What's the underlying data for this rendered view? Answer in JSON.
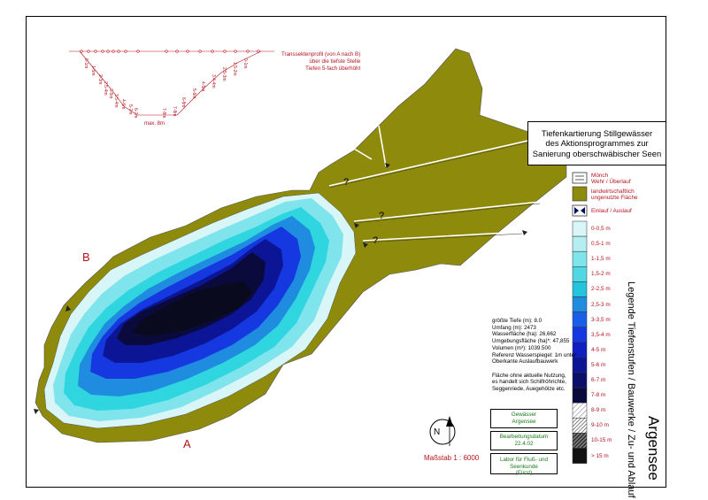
{
  "map": {
    "lake_name": "Argensee",
    "point_a": "A",
    "point_b": "B",
    "question_marks": [
      "?",
      "?",
      "?"
    ],
    "north_label": "N",
    "scale": "Maßstab 1 : 6000",
    "colors": {
      "land": "#8d8a0c",
      "shore": "#d8f6f8",
      "outer_depth": "#2fd6e0",
      "deepest": "#0a0a1e"
    }
  },
  "profile": {
    "caption_lines": [
      "Transsektenprofil (von A nach B)",
      "über die tiefste Stelle",
      "Tiefen 5-fach überhöht"
    ],
    "max_label": "max. 8m",
    "depth_labels": [
      "0-1m",
      "1-5m",
      "2-3m",
      "2.5-4m",
      "3-5m",
      "3.5-4m",
      "4-6m",
      "5-7m",
      "6-7m",
      "7-8m",
      "7-8m",
      "6-8m",
      "5-6m",
      "4-5m",
      "3.4-4m",
      "2.5-3m",
      "1.5-2m",
      "0-1m"
    ]
  },
  "title": {
    "lines": [
      "Tiefenkartierung Stillgewässer",
      "des Aktionsprogrammes zur",
      "Sanierung oberschwäbischer Seen"
    ]
  },
  "legend": {
    "vertical_title": "Argensee",
    "vertical_subtitle": "Legende Tiefenstufen / Bauwerke / Zu- und Ablauf",
    "symbols": [
      {
        "label": "Mönch",
        "label2": "Wehr / Überlauf",
        "icon": "weir-icon"
      },
      {
        "label": "landwirtschaftlich",
        "label2": "ungenutzte Fläche",
        "icon": "land-swatch"
      },
      {
        "label": "Einlauf / Auslauf",
        "label2": "",
        "icon": "inflow-outflow-icon"
      }
    ],
    "depth_classes": [
      {
        "label": "0-0,5 m",
        "color": "#d8f6f8"
      },
      {
        "label": "0,5-1 m",
        "color": "#b4eef2"
      },
      {
        "label": "1-1,5 m",
        "color": "#7fe4ec"
      },
      {
        "label": "1,5-2 m",
        "color": "#4fd7e4"
      },
      {
        "label": "2-2,5 m",
        "color": "#23c4dc"
      },
      {
        "label": "2,5-3 m",
        "color": "#1f8ce0"
      },
      {
        "label": "3-3,5 m",
        "color": "#1b5ee8"
      },
      {
        "label": "3,5-4 m",
        "color": "#1538e0"
      },
      {
        "label": "4-5 m",
        "color": "#1020c0"
      },
      {
        "label": "5-6 m",
        "color": "#0c1596"
      },
      {
        "label": "6-7 m",
        "color": "#0b0f6a"
      },
      {
        "label": "7-8 m",
        "color": "#0a0a3c"
      },
      {
        "label": "8-9 m",
        "color": "hatch-light"
      },
      {
        "label": "9-10 m",
        "color": "hatch-mid"
      },
      {
        "label": "10-15 m",
        "color": "hatch-dark"
      },
      {
        "label": "> 15 m",
        "color": "#111111"
      }
    ]
  },
  "stats": {
    "lines": [
      "größte Tiefe (m): 8.0",
      "Umfang (m): 2473",
      "Wasserfläche (ha): 26,662",
      "Umgebungsfläche (ha)*: 47,855",
      "Volumen (m³): 1039.500",
      "Referenz Wasserspiegel: 1m unter",
      "Oberkante Auslaufbauwerk",
      "",
      "Fläche ohne aktuelle Nutzung,",
      "es handelt sich Schilfröhrichte,",
      "Seggenriede, Auegehölze etc."
    ]
  },
  "info_boxes": {
    "water_label": "Gewässer",
    "water_value": "Argensee",
    "date_label": "Bearbeitungsdatum",
    "date_value": "22.4.02",
    "lab_line1": "Labor für Fluß- und Seenkunde",
    "lab_line2": "(Fürst)"
  }
}
